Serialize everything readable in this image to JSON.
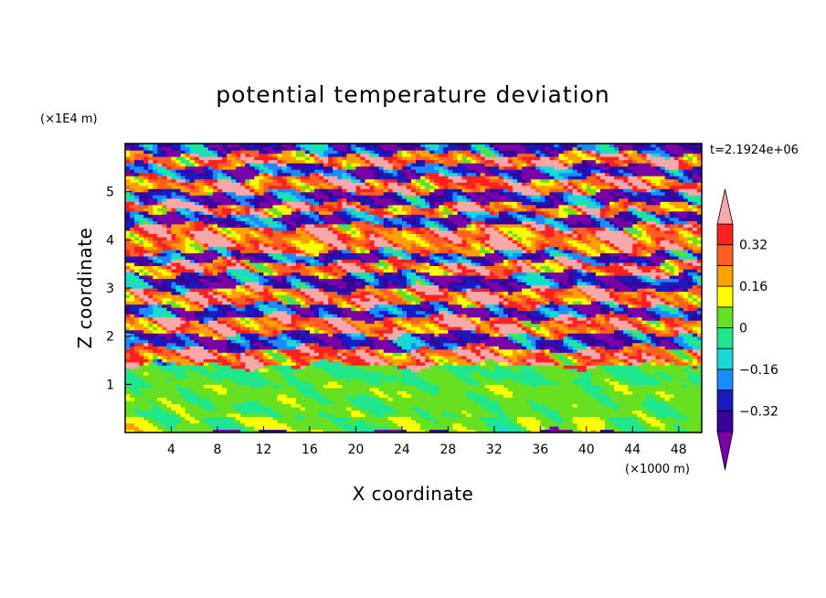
{
  "chart_data": {
    "type": "heatmap",
    "title": "potential temperature deviation",
    "xlabel": "X coordinate",
    "ylabel": "Z coordinate",
    "x_unit_label": "(×1000 m)",
    "y_unit_label": "(×1E4 m)",
    "time_label": "t=2.1924e+06",
    "xlim": [
      0,
      50
    ],
    "ylim": [
      0,
      6
    ],
    "x_ticks": [
      4,
      8,
      12,
      16,
      20,
      24,
      28,
      32,
      36,
      40,
      44,
      48
    ],
    "y_ticks": [
      1,
      2,
      3,
      4,
      5
    ],
    "colorbar": {
      "levels": [
        -0.4,
        -0.32,
        -0.24,
        -0.16,
        -0.08,
        0,
        0.08,
        0.16,
        0.24,
        0.32,
        0.4
      ],
      "labels": [
        "0.32",
        "0.16",
        "0",
        "−0.16",
        "−0.32"
      ],
      "label_values": [
        0.32,
        0.16,
        0,
        -0.16,
        -0.32
      ],
      "colors": [
        "#7a00a8",
        "#3a009c",
        "#1a1ac0",
        "#1a8cff",
        "#18d8d8",
        "#20e68c",
        "#66e020",
        "#ffff00",
        "#ffa000",
        "#ff6020",
        "#ff2020",
        "#f8a8a8"
      ],
      "extend": "both"
    },
    "layers": [
      {
        "z": [
          0.0,
          0.35
        ],
        "value": 0.04,
        "note": "green/cyan turbulent near-surface"
      },
      {
        "z": [
          0.35,
          0.7
        ],
        "value": 0.02
      },
      {
        "z": [
          0.7,
          1.0
        ],
        "value": 0.04
      },
      {
        "z": [
          1.0,
          1.4
        ],
        "value": 0.0
      },
      {
        "z": [
          1.4,
          1.75
        ],
        "value": 0.4
      },
      {
        "z": [
          1.75,
          2.05
        ],
        "value": -0.4
      },
      {
        "z": [
          2.05,
          2.4
        ],
        "value": 0.4
      },
      {
        "z": [
          2.4,
          2.65
        ],
        "value": -0.4
      },
      {
        "z": [
          2.65,
          3.0
        ],
        "value": 0.4
      },
      {
        "z": [
          3.0,
          3.3
        ],
        "value": -0.4
      },
      {
        "z": [
          3.3,
          3.55
        ],
        "value": 0.4
      },
      {
        "z": [
          3.55,
          3.75
        ],
        "value": -0.4
      },
      {
        "z": [
          3.75,
          4.3
        ],
        "value": 0.4
      },
      {
        "z": [
          4.3,
          4.55
        ],
        "value": -0.4
      },
      {
        "z": [
          4.55,
          4.75
        ],
        "value": 0.4
      },
      {
        "z": [
          4.75,
          5.0
        ],
        "value": -0.4
      },
      {
        "z": [
          5.0,
          5.3
        ],
        "value": 0.4
      },
      {
        "z": [
          5.3,
          5.55
        ],
        "value": -0.4
      },
      {
        "z": [
          5.55,
          5.8
        ],
        "value": 0.4
      },
      {
        "z": [
          5.8,
          6.0
        ],
        "value": -0.4
      }
    ]
  }
}
